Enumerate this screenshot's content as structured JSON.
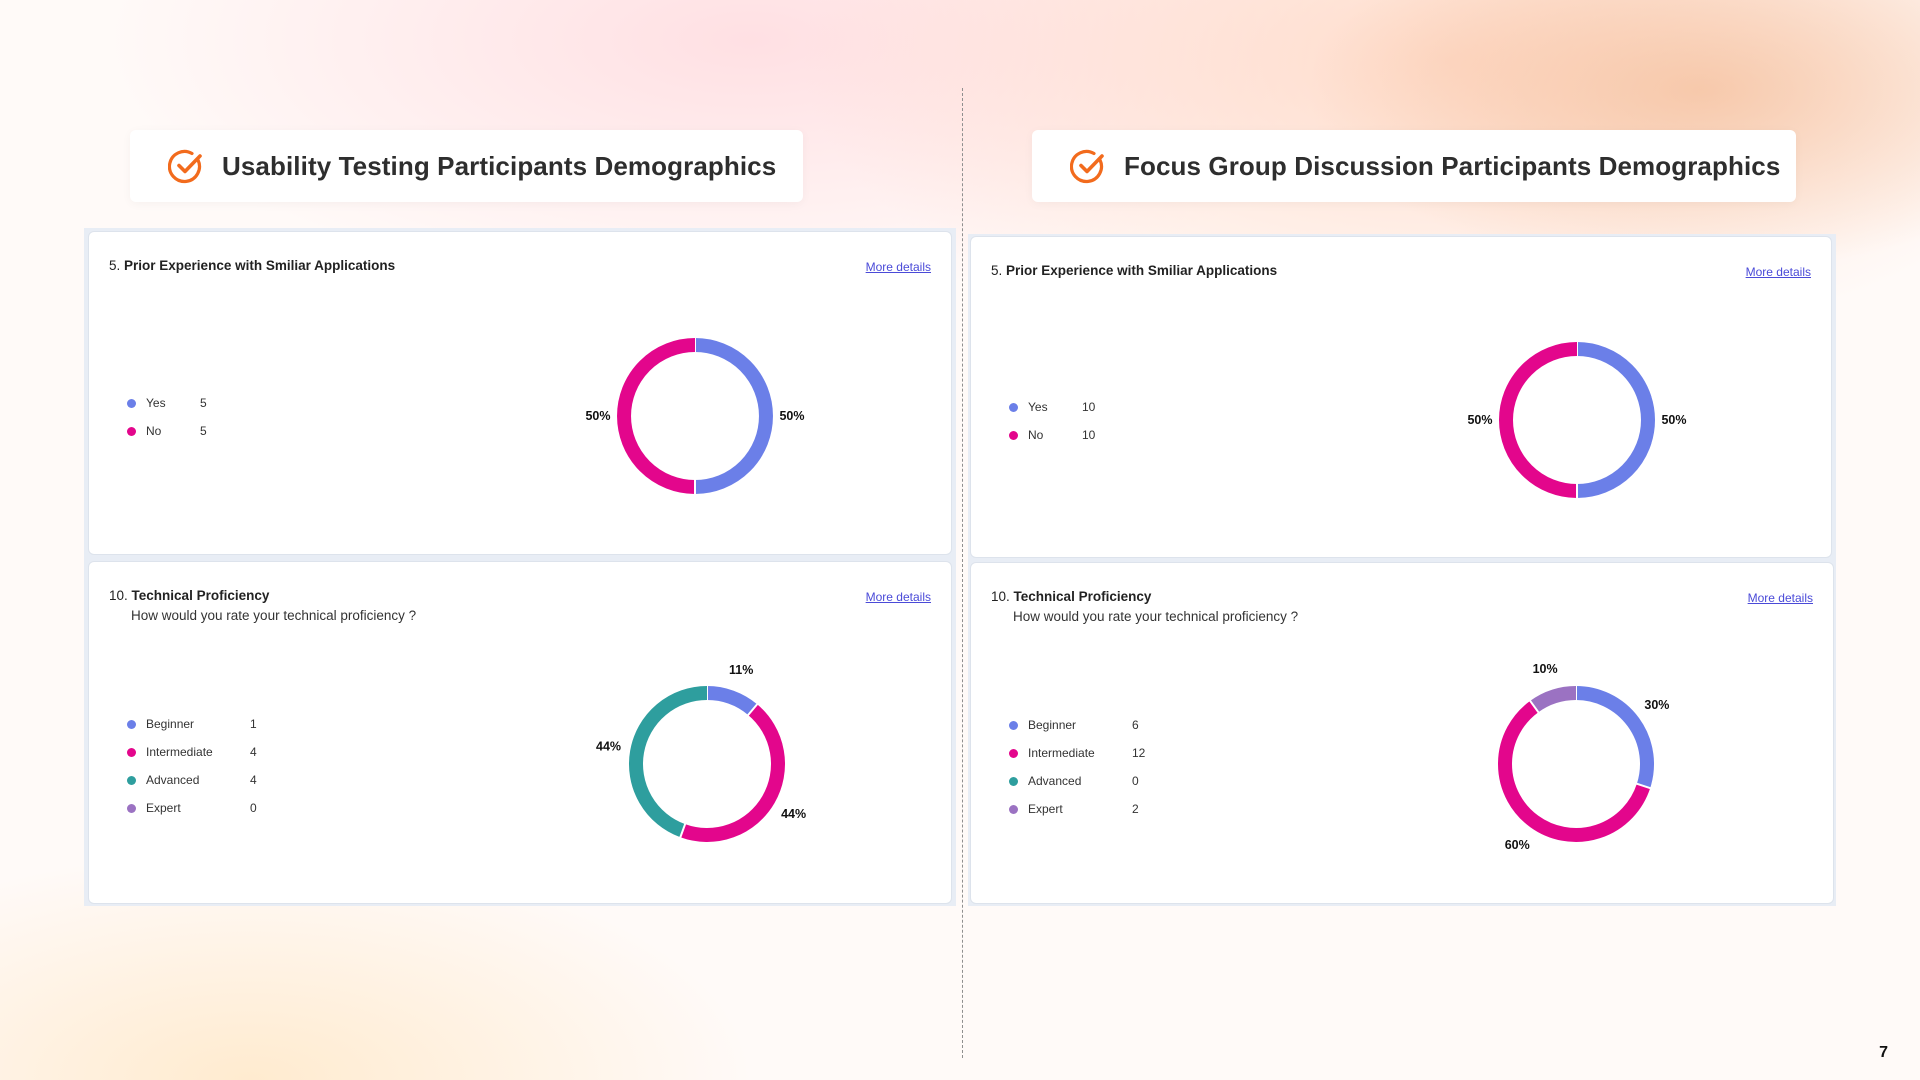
{
  "sections": [
    {
      "title": "Usability Testing Participants Demographics",
      "cards": [
        {
          "number": "5.",
          "question": "Prior Experience with Smiliar Applications",
          "subtitle": "",
          "link": "More details",
          "chart_data": {
            "type": "pie",
            "donut": true,
            "categories": [
              "Yes",
              "No"
            ],
            "values": [
              5,
              5
            ],
            "labels": [
              "50%",
              "50%"
            ],
            "colors": [
              "#6b7fe8",
              "#e3068c"
            ]
          }
        },
        {
          "number": "10.",
          "question": "Technical Proficiency",
          "subtitle": "How would you rate your technical proficiency ?",
          "link": "More details",
          "chart_data": {
            "type": "pie",
            "donut": true,
            "categories": [
              "Beginner",
              "Intermediate",
              "Advanced",
              "Expert"
            ],
            "values": [
              1,
              4,
              4,
              0
            ],
            "labels": [
              "11%",
              "44%",
              "44%",
              ""
            ],
            "colors": [
              "#6b7fe8",
              "#e3068c",
              "#2e9e9e",
              "#9b72c2"
            ]
          }
        }
      ]
    },
    {
      "title": "Focus Group Discussion Participants Demographics",
      "cards": [
        {
          "number": "5.",
          "question": "Prior Experience with Smiliar Applications",
          "subtitle": "",
          "link": "More details",
          "chart_data": {
            "type": "pie",
            "donut": true,
            "categories": [
              "Yes",
              "No"
            ],
            "values": [
              10,
              10
            ],
            "labels": [
              "50%",
              "50%"
            ],
            "colors": [
              "#6b7fe8",
              "#e3068c"
            ]
          }
        },
        {
          "number": "10.",
          "question": "Technical Proficiency",
          "subtitle": "How would you rate your technical proficiency ?",
          "link": "More details",
          "chart_data": {
            "type": "pie",
            "donut": true,
            "categories": [
              "Beginner",
              "Intermediate",
              "Advanced",
              "Expert"
            ],
            "values": [
              6,
              12,
              0,
              2
            ],
            "labels": [
              "30%",
              "60%",
              "",
              "10%"
            ],
            "colors": [
              "#6b7fe8",
              "#e3068c",
              "#2e9e9e",
              "#9b72c2"
            ]
          }
        }
      ]
    }
  ],
  "page_number": "7",
  "accent_color": "#f26b1d"
}
